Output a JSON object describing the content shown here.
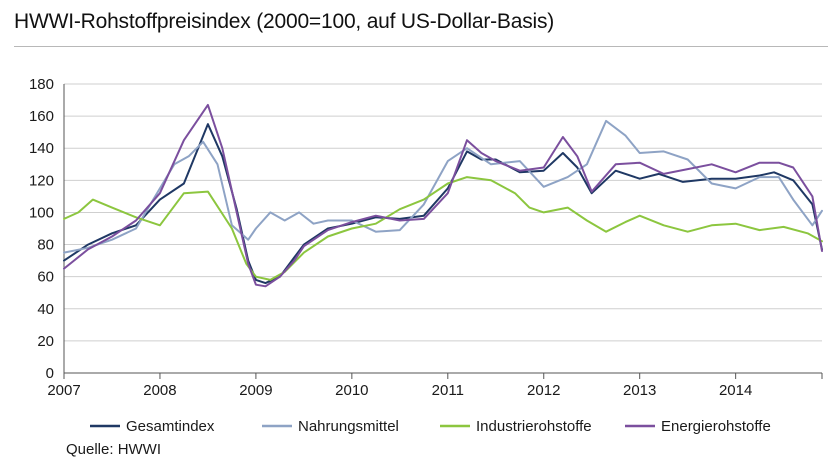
{
  "header": {
    "title": "HWWI-Rohstoffpreisindex (2000=100, auf US-Dollar-Basis)"
  },
  "footer": {
    "source": "Quelle: HWWI"
  },
  "chart_data": {
    "type": "line",
    "title": "HWWI-Rohstoffpreisindex (2000=100, auf US-Dollar-Basis)",
    "xlabel": "",
    "ylabel": "",
    "xlim": [
      2007.0,
      2014.9
    ],
    "ylim": [
      0,
      180
    ],
    "yticks": [
      0,
      20,
      40,
      60,
      80,
      100,
      120,
      140,
      160,
      180
    ],
    "xticks": [
      "2007",
      "2008",
      "2009",
      "2010",
      "2011",
      "2012",
      "2013",
      "2014"
    ],
    "grid": "horizontal",
    "legend": "bottom",
    "series": [
      {
        "name": "Gesamtindex",
        "color": "#1f3864",
        "x": [
          2007.0,
          2007.25,
          2007.5,
          2007.75,
          2008.0,
          2008.25,
          2008.5,
          2008.65,
          2008.8,
          2008.92,
          2009.0,
          2009.1,
          2009.25,
          2009.4,
          2009.5,
          2009.75,
          2010.0,
          2010.25,
          2010.5,
          2010.75,
          2011.0,
          2011.2,
          2011.35,
          2011.5,
          2011.75,
          2012.0,
          2012.2,
          2012.35,
          2012.5,
          2012.75,
          2013.0,
          2013.2,
          2013.45,
          2013.75,
          2014.0,
          2014.25,
          2014.4,
          2014.6,
          2014.8,
          2014.9
        ],
        "y": [
          70,
          80,
          87,
          92,
          108,
          118,
          155,
          135,
          102,
          70,
          58,
          56,
          60,
          72,
          80,
          90,
          93,
          97,
          96,
          98,
          115,
          138,
          133,
          133,
          125,
          126,
          137,
          128,
          112,
          126,
          121,
          124,
          119,
          121,
          121,
          123,
          125,
          120,
          105,
          77
        ]
      },
      {
        "name": "Nahrungsmittel",
        "color": "#8ea3c5",
        "x": [
          2007.0,
          2007.25,
          2007.5,
          2007.75,
          2008.0,
          2008.15,
          2008.3,
          2008.45,
          2008.6,
          2008.75,
          2008.92,
          2009.0,
          2009.15,
          2009.3,
          2009.45,
          2009.6,
          2009.75,
          2010.0,
          2010.25,
          2010.5,
          2010.75,
          2011.0,
          2011.2,
          2011.45,
          2011.75,
          2012.0,
          2012.25,
          2012.45,
          2012.65,
          2012.85,
          2013.0,
          2013.25,
          2013.5,
          2013.75,
          2014.0,
          2014.25,
          2014.45,
          2014.6,
          2014.8,
          2014.9
        ],
        "y": [
          75,
          78,
          83,
          90,
          115,
          130,
          135,
          144,
          130,
          92,
          83,
          90,
          100,
          95,
          100,
          93,
          95,
          95,
          88,
          89,
          105,
          132,
          140,
          130,
          132,
          116,
          122,
          130,
          157,
          148,
          137,
          138,
          133,
          118,
          115,
          122,
          122,
          108,
          92,
          101
        ]
      },
      {
        "name": "Industrierohstoffe",
        "color": "#8cc63f",
        "x": [
          2007.0,
          2007.15,
          2007.3,
          2007.5,
          2007.75,
          2008.0,
          2008.25,
          2008.5,
          2008.75,
          2008.9,
          2009.0,
          2009.15,
          2009.3,
          2009.5,
          2009.75,
          2010.0,
          2010.25,
          2010.5,
          2010.75,
          2011.0,
          2011.2,
          2011.45,
          2011.7,
          2011.85,
          2012.0,
          2012.25,
          2012.45,
          2012.65,
          2012.85,
          2013.0,
          2013.25,
          2013.5,
          2013.75,
          2014.0,
          2014.25,
          2014.5,
          2014.75,
          2014.9
        ],
        "y": [
          96,
          100,
          108,
          103,
          97,
          92,
          112,
          113,
          90,
          68,
          60,
          58,
          63,
          75,
          85,
          90,
          93,
          102,
          108,
          118,
          122,
          120,
          112,
          103,
          100,
          103,
          95,
          88,
          94,
          98,
          92,
          88,
          92,
          93,
          89,
          91,
          87,
          82
        ]
      },
      {
        "name": "Energierohstoffe",
        "color": "#7b4f9e",
        "x": [
          2007.0,
          2007.25,
          2007.5,
          2007.75,
          2008.0,
          2008.25,
          2008.5,
          2008.65,
          2008.8,
          2008.92,
          2009.0,
          2009.1,
          2009.25,
          2009.4,
          2009.5,
          2009.75,
          2010.0,
          2010.25,
          2010.5,
          2010.75,
          2011.0,
          2011.2,
          2011.35,
          2011.5,
          2011.75,
          2012.0,
          2012.2,
          2012.35,
          2012.5,
          2012.75,
          2013.0,
          2013.25,
          2013.5,
          2013.75,
          2014.0,
          2014.25,
          2014.45,
          2014.6,
          2014.8,
          2014.9
        ],
        "y": [
          65,
          77,
          85,
          95,
          112,
          145,
          167,
          140,
          100,
          68,
          55,
          54,
          60,
          70,
          79,
          89,
          94,
          98,
          95,
          96,
          112,
          145,
          137,
          132,
          126,
          128,
          147,
          135,
          113,
          130,
          131,
          124,
          127,
          130,
          125,
          131,
          131,
          128,
          110,
          76
        ]
      }
    ]
  }
}
